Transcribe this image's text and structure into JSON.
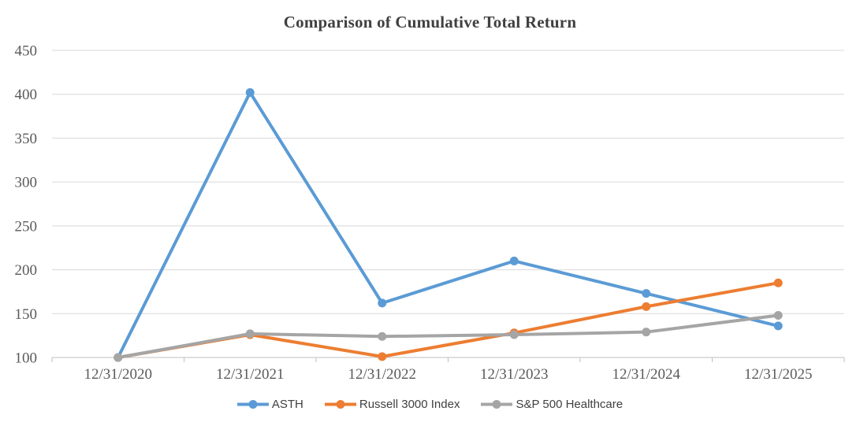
{
  "chart_data": {
    "type": "line",
    "title": "Comparison of Cumulative Total Return",
    "categories": [
      "12/31/2020",
      "12/31/2021",
      "12/31/2022",
      "12/31/2023",
      "12/31/2024",
      "12/31/2025"
    ],
    "series": [
      {
        "name": "ASTH",
        "color": "#5B9BD5",
        "values": [
          100,
          402,
          162,
          210,
          173,
          136
        ]
      },
      {
        "name": "Russell 3000 Index",
        "color": "#ED7D31",
        "values": [
          100,
          126,
          101,
          128,
          158,
          185
        ]
      },
      {
        "name": "S&P 500 Healthcare",
        "color": "#A5A5A5",
        "values": [
          100,
          127,
          124,
          126,
          129,
          148
        ]
      }
    ],
    "y_axis": {
      "min": 100,
      "max": 450,
      "tick_step": 50,
      "ticks": [
        100,
        150,
        200,
        250,
        300,
        350,
        400,
        450
      ]
    },
    "x_axis": {
      "label_format": "date"
    },
    "grid": true,
    "legend_position": "bottom",
    "marker": "circle",
    "colors": {
      "gridline": "#D9D9D9",
      "axis_line": "#BFBFBF",
      "axis_text": "#595959",
      "title_text": "#404040",
      "legend_text": "#404040",
      "background": "#FFFFFF"
    }
  }
}
